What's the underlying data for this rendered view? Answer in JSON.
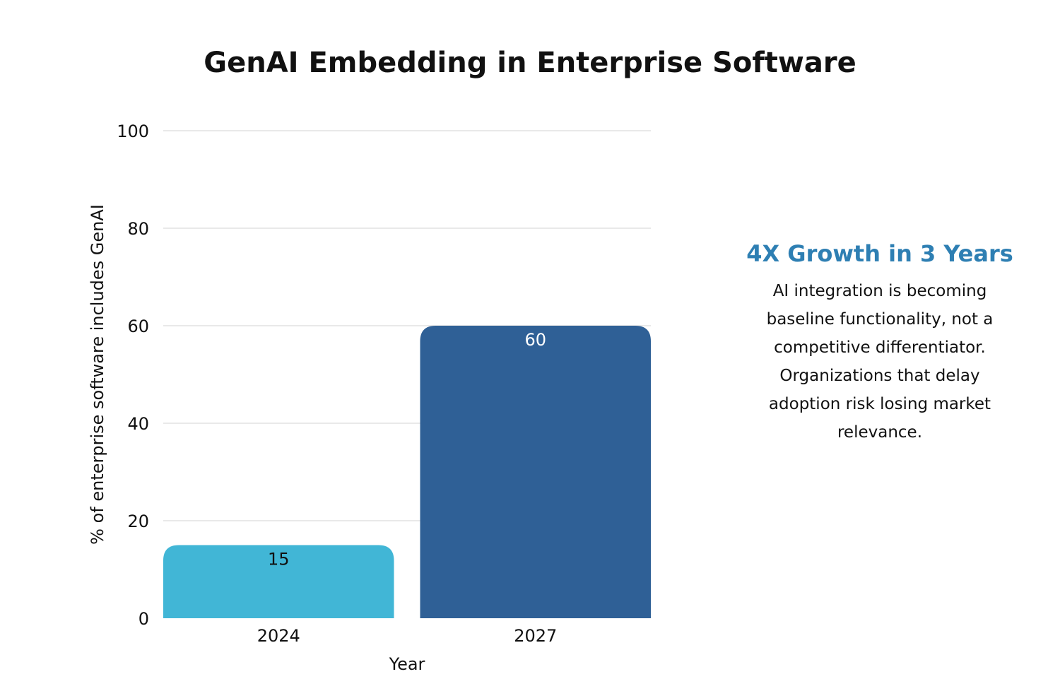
{
  "chart_data": {
    "type": "bar",
    "title": "GenAI Embedding in Enterprise Software",
    "xlabel": "Year",
    "ylabel": "% of enterprise software includes GenAI",
    "categories": [
      "2024",
      "2027"
    ],
    "values": [
      15,
      60
    ],
    "data_labels": [
      "15",
      "60"
    ],
    "bar_colors": [
      "#41b6d6",
      "#2f6096"
    ],
    "label_colors": [
      "#111111",
      "#ffffff"
    ],
    "ylim": [
      0,
      100
    ],
    "yticks": [
      0,
      20,
      40,
      60,
      80,
      100
    ],
    "ytick_labels": [
      "0",
      "20",
      "40",
      "60",
      "80",
      "100"
    ],
    "grid": true,
    "legend": "none"
  },
  "callout": {
    "heading": "4X Growth in 3 Years",
    "heading_color": "#2e7fb3",
    "lines": [
      "AI integration is becoming",
      "baseline functionality, not a",
      "competitive differentiator.",
      "Organizations that delay",
      "adoption risk losing market",
      "relevance."
    ]
  }
}
